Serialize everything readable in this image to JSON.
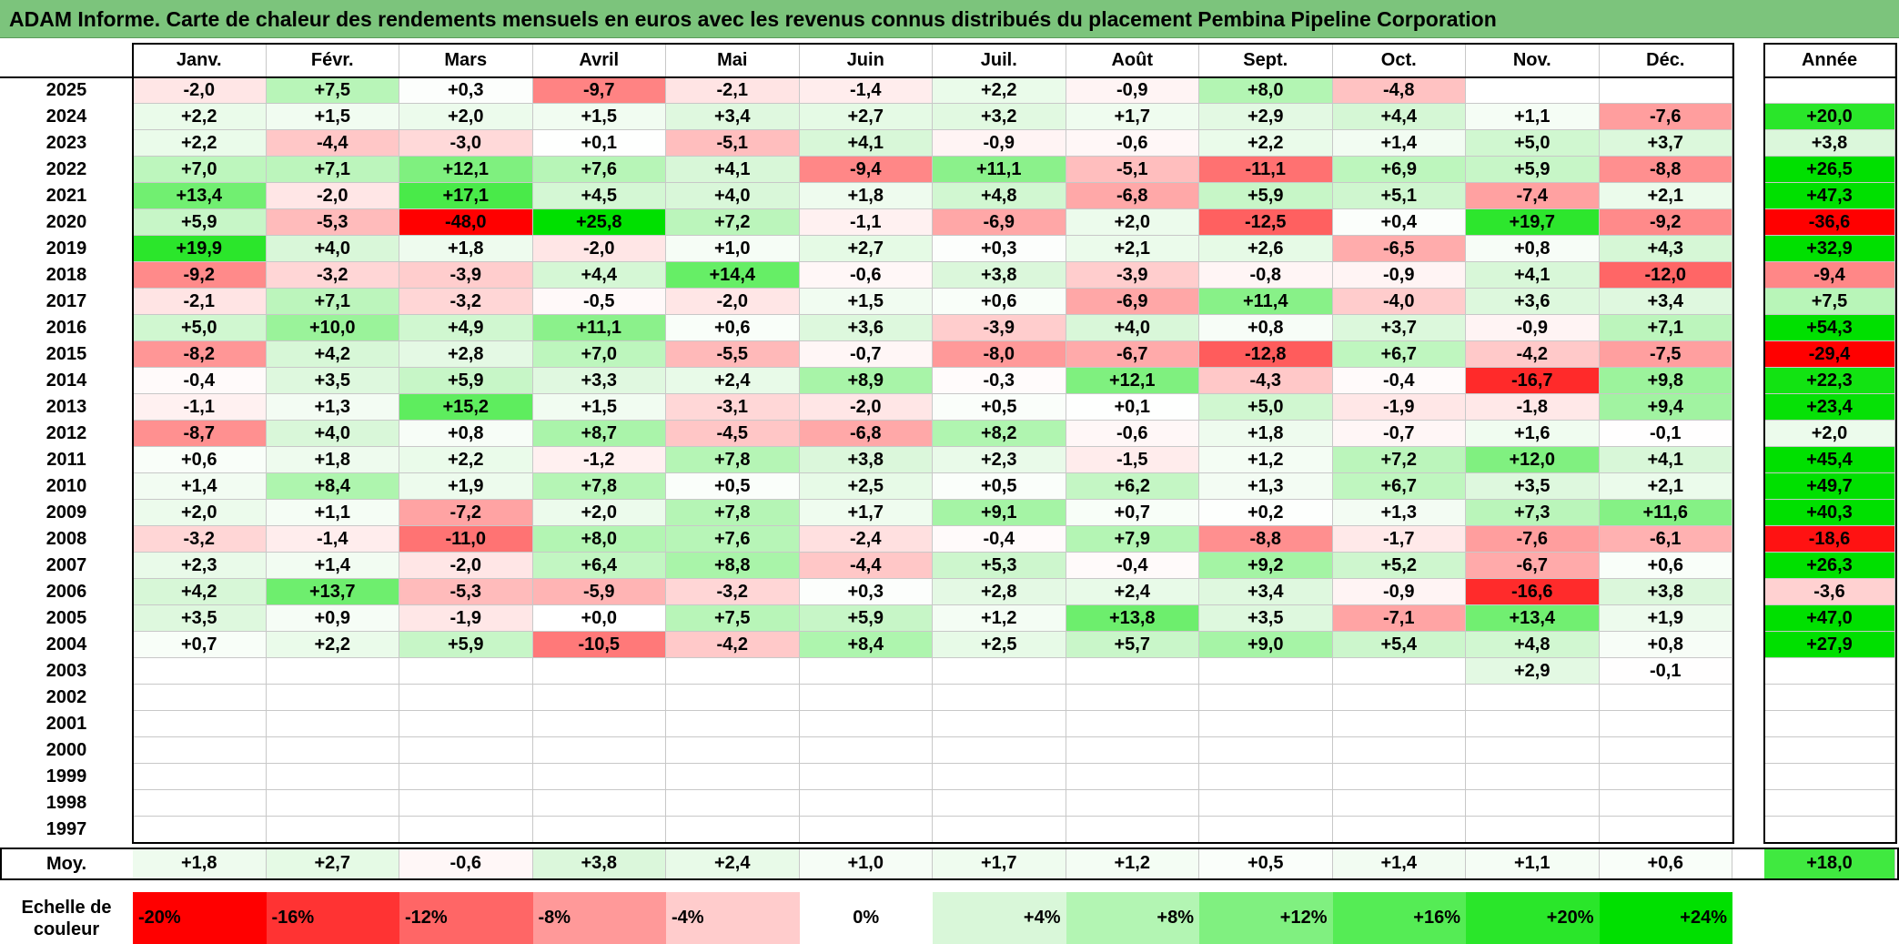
{
  "chart_data": {
    "type": "heatmap",
    "title": "ADAM Informe. Carte de chaleur des rendements mensuels en euros avec les revenus connus distribués du placement Pembina Pipeline Corporation",
    "columns": [
      "Janv.",
      "Févr.",
      "Mars",
      "Avril",
      "Mai",
      "Juin",
      "Juil.",
      "Août",
      "Sept.",
      "Oct.",
      "Nov.",
      "Déc."
    ],
    "annual_label": "Année",
    "rows": [
      {
        "year": "2025",
        "values": [
          "-2,0",
          "+7,5",
          "+0,3",
          "-9,7",
          "-2,1",
          "-1,4",
          "+2,2",
          "-0,9",
          "+8,0",
          "-4,8",
          "",
          ""
        ],
        "annual": ""
      },
      {
        "year": "2024",
        "values": [
          "+2,2",
          "+1,5",
          "+2,0",
          "+1,5",
          "+3,4",
          "+2,7",
          "+3,2",
          "+1,7",
          "+2,9",
          "+4,4",
          "+1,1",
          "-7,6"
        ],
        "annual": "+20,0"
      },
      {
        "year": "2023",
        "values": [
          "+2,2",
          "-4,4",
          "-3,0",
          "+0,1",
          "-5,1",
          "+4,1",
          "-0,9",
          "-0,6",
          "+2,2",
          "+1,4",
          "+5,0",
          "+3,7"
        ],
        "annual": "+3,8"
      },
      {
        "year": "2022",
        "values": [
          "+7,0",
          "+7,1",
          "+12,1",
          "+7,6",
          "+4,1",
          "-9,4",
          "+11,1",
          "-5,1",
          "-11,1",
          "+6,9",
          "+5,9",
          "-8,8"
        ],
        "annual": "+26,5"
      },
      {
        "year": "2021",
        "values": [
          "+13,4",
          "-2,0",
          "+17,1",
          "+4,5",
          "+4,0",
          "+1,8",
          "+4,8",
          "-6,8",
          "+5,9",
          "+5,1",
          "-7,4",
          "+2,1"
        ],
        "annual": "+47,3"
      },
      {
        "year": "2020",
        "values": [
          "+5,9",
          "-5,3",
          "-48,0",
          "+25,8",
          "+7,2",
          "-1,1",
          "-6,9",
          "+2,0",
          "-12,5",
          "+0,4",
          "+19,7",
          "-9,2"
        ],
        "annual": "-36,6"
      },
      {
        "year": "2019",
        "values": [
          "+19,9",
          "+4,0",
          "+1,8",
          "-2,0",
          "+1,0",
          "+2,7",
          "+0,3",
          "+2,1",
          "+2,6",
          "-6,5",
          "+0,8",
          "+4,3"
        ],
        "annual": "+32,9"
      },
      {
        "year": "2018",
        "values": [
          "-9,2",
          "-3,2",
          "-3,9",
          "+4,4",
          "+14,4",
          "-0,6",
          "+3,8",
          "-3,9",
          "-0,8",
          "-0,9",
          "+4,1",
          "-12,0"
        ],
        "annual": "-9,4"
      },
      {
        "year": "2017",
        "values": [
          "-2,1",
          "+7,1",
          "-3,2",
          "-0,5",
          "-2,0",
          "+1,5",
          "+0,6",
          "-6,9",
          "+11,4",
          "-4,0",
          "+3,6",
          "+3,4"
        ],
        "annual": "+7,5"
      },
      {
        "year": "2016",
        "values": [
          "+5,0",
          "+10,0",
          "+4,9",
          "+11,1",
          "+0,6",
          "+3,6",
          "-3,9",
          "+4,0",
          "+0,8",
          "+3,7",
          "-0,9",
          "+7,1"
        ],
        "annual": "+54,3"
      },
      {
        "year": "2015",
        "values": [
          "-8,2",
          "+4,2",
          "+2,8",
          "+7,0",
          "-5,5",
          "-0,7",
          "-8,0",
          "-6,7",
          "-12,8",
          "+6,7",
          "-4,2",
          "-7,5"
        ],
        "annual": "-29,4"
      },
      {
        "year": "2014",
        "values": [
          "-0,4",
          "+3,5",
          "+5,9",
          "+3,3",
          "+2,4",
          "+8,9",
          "-0,3",
          "+12,1",
          "-4,3",
          "-0,4",
          "-16,7",
          "+9,8"
        ],
        "annual": "+22,3"
      },
      {
        "year": "2013",
        "values": [
          "-1,1",
          "+1,3",
          "+15,2",
          "+1,5",
          "-3,1",
          "-2,0",
          "+0,5",
          "+0,1",
          "+5,0",
          "-1,9",
          "-1,8",
          "+9,4"
        ],
        "annual": "+23,4"
      },
      {
        "year": "2012",
        "values": [
          "-8,7",
          "+4,0",
          "+0,8",
          "+8,7",
          "-4,5",
          "-6,8",
          "+8,2",
          "-0,6",
          "+1,8",
          "-0,7",
          "+1,6",
          "-0,1"
        ],
        "annual": "+2,0"
      },
      {
        "year": "2011",
        "values": [
          "+0,6",
          "+1,8",
          "+2,2",
          "-1,2",
          "+7,8",
          "+3,8",
          "+2,3",
          "-1,5",
          "+1,2",
          "+7,2",
          "+12,0",
          "+4,1"
        ],
        "annual": "+45,4"
      },
      {
        "year": "2010",
        "values": [
          "+1,4",
          "+8,4",
          "+1,9",
          "+7,8",
          "+0,5",
          "+2,5",
          "+0,5",
          "+6,2",
          "+1,3",
          "+6,7",
          "+3,5",
          "+2,1"
        ],
        "annual": "+49,7"
      },
      {
        "year": "2009",
        "values": [
          "+2,0",
          "+1,1",
          "-7,2",
          "+2,0",
          "+7,8",
          "+1,7",
          "+9,1",
          "+0,7",
          "+0,2",
          "+1,3",
          "+7,3",
          "+11,6"
        ],
        "annual": "+40,3"
      },
      {
        "year": "2008",
        "values": [
          "-3,2",
          "-1,4",
          "-11,0",
          "+8,0",
          "+7,6",
          "-2,4",
          "-0,4",
          "+7,9",
          "-8,8",
          "-1,7",
          "-7,6",
          "-6,1"
        ],
        "annual": "-18,6"
      },
      {
        "year": "2007",
        "values": [
          "+2,3",
          "+1,4",
          "-2,0",
          "+6,4",
          "+8,8",
          "-4,4",
          "+5,3",
          "-0,4",
          "+9,2",
          "+5,2",
          "-6,7",
          "+0,6"
        ],
        "annual": "+26,3"
      },
      {
        "year": "2006",
        "values": [
          "+4,2",
          "+13,7",
          "-5,3",
          "-5,9",
          "-3,2",
          "+0,3",
          "+2,8",
          "+2,4",
          "+3,4",
          "-0,9",
          "-16,6",
          "+3,8"
        ],
        "annual": "-3,6"
      },
      {
        "year": "2005",
        "values": [
          "+3,5",
          "+0,9",
          "-1,9",
          "+0,0",
          "+7,5",
          "+5,9",
          "+1,2",
          "+13,8",
          "+3,5",
          "-7,1",
          "+13,4",
          "+1,9"
        ],
        "annual": "+47,0"
      },
      {
        "year": "2004",
        "values": [
          "+0,7",
          "+2,2",
          "+5,9",
          "-10,5",
          "-4,2",
          "+8,4",
          "+2,5",
          "+5,7",
          "+9,0",
          "+5,4",
          "+4,8",
          "+0,8"
        ],
        "annual": "+27,9"
      },
      {
        "year": "2003",
        "values": [
          "",
          "",
          "",
          "",
          "",
          "",
          "",
          "",
          "",
          "",
          "+2,9",
          "-0,1"
        ],
        "annual": ""
      },
      {
        "year": "2002",
        "values": [
          "",
          "",
          "",
          "",
          "",
          "",
          "",
          "",
          "",
          "",
          "",
          ""
        ],
        "annual": ""
      },
      {
        "year": "2001",
        "values": [
          "",
          "",
          "",
          "",
          "",
          "",
          "",
          "",
          "",
          "",
          "",
          ""
        ],
        "annual": ""
      },
      {
        "year": "2000",
        "values": [
          "",
          "",
          "",
          "",
          "",
          "",
          "",
          "",
          "",
          "",
          "",
          ""
        ],
        "annual": ""
      },
      {
        "year": "1999",
        "values": [
          "",
          "",
          "",
          "",
          "",
          "",
          "",
          "",
          "",
          "",
          "",
          ""
        ],
        "annual": ""
      },
      {
        "year": "1998",
        "values": [
          "",
          "",
          "",
          "",
          "",
          "",
          "",
          "",
          "",
          "",
          "",
          ""
        ],
        "annual": ""
      },
      {
        "year": "1997",
        "values": [
          "",
          "",
          "",
          "",
          "",
          "",
          "",
          "",
          "",
          "",
          "",
          ""
        ],
        "annual": ""
      }
    ],
    "average_row": {
      "label": "Moy.",
      "values": [
        "+1,8",
        "+2,7",
        "-0,6",
        "+3,8",
        "+2,4",
        "+1,0",
        "+1,7",
        "+1,2",
        "+0,5",
        "+1,4",
        "+1,1",
        "+0,6"
      ],
      "annual": "+18,0"
    },
    "color_scale": {
      "label": "Echelle de couleur",
      "stops": [
        {
          "label": "-20%",
          "value": -20,
          "color": "#ff0000"
        },
        {
          "label": "-16%",
          "value": -16,
          "color": "#ff3333"
        },
        {
          "label": "-12%",
          "value": -12,
          "color": "#ff6666"
        },
        {
          "label": "-8%",
          "value": -8,
          "color": "#ff9999"
        },
        {
          "label": "-4%",
          "value": -4,
          "color": "#ffcccc"
        },
        {
          "label": "0%",
          "value": 0,
          "color": "#ffffff"
        },
        {
          "label": "+4%",
          "value": 4,
          "color": "#d9f7d9"
        },
        {
          "label": "+8%",
          "value": 8,
          "color": "#b3f5b3"
        },
        {
          "label": "+12%",
          "value": 12,
          "color": "#80f080"
        },
        {
          "label": "+16%",
          "value": 16,
          "color": "#55ec55"
        },
        {
          "label": "+20%",
          "value": 20,
          "color": "#2ae62a"
        },
        {
          "label": "+24%",
          "value": 24,
          "color": "#00e000"
        }
      ]
    }
  }
}
